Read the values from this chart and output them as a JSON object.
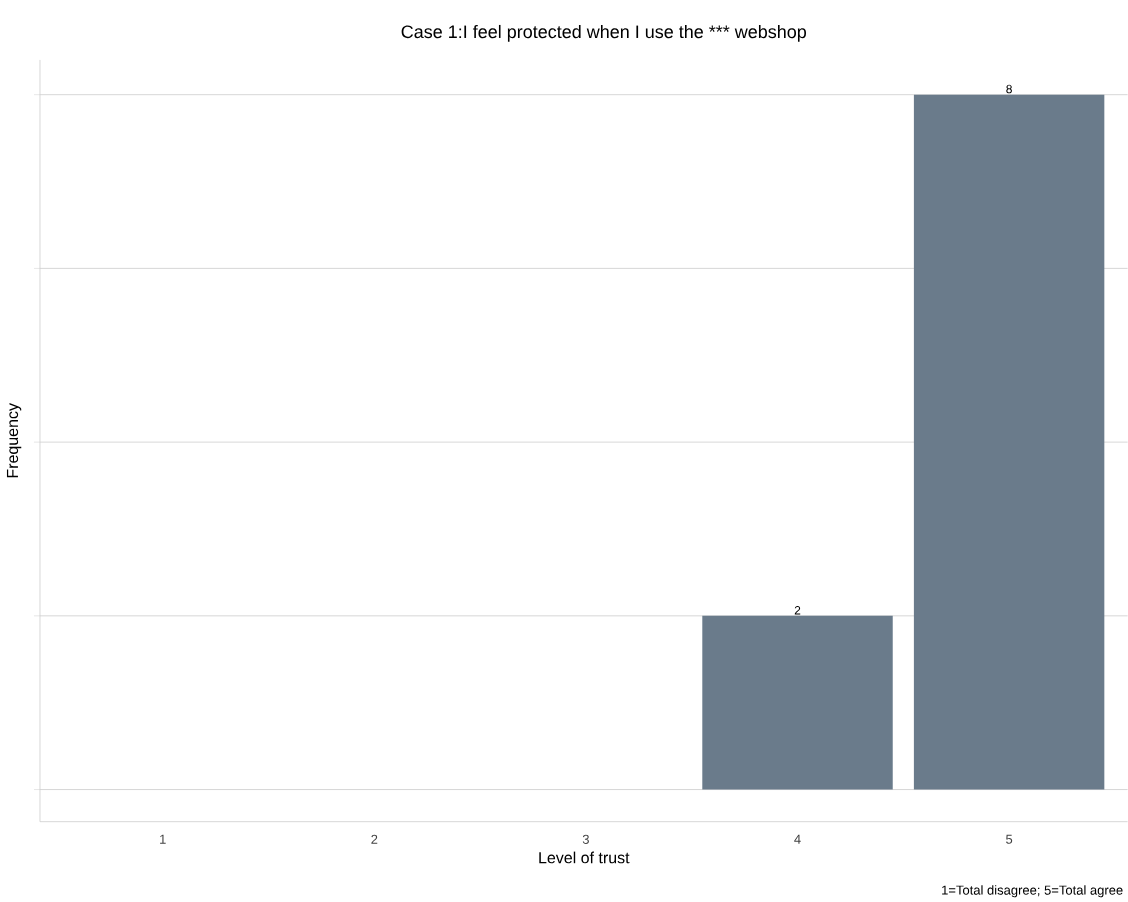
{
  "chart_data": {
    "type": "bar",
    "title": "Case 1:I feel protected when I use the *** webshop",
    "xlabel": "Level of trust",
    "ylabel": "Frequency",
    "categories": [
      "1",
      "2",
      "3",
      "4",
      "5"
    ],
    "values": [
      0,
      0,
      0,
      2,
      8
    ],
    "value_labels": [
      null,
      null,
      null,
      "2",
      "8"
    ],
    "color": "#6a7b8b",
    "ylim": [
      -0.37,
      8.4
    ],
    "yticks": [
      {
        "value": 0,
        "label": null
      },
      {
        "value": 2,
        "label": null
      },
      {
        "value": 4,
        "label": null
      },
      {
        "value": 6,
        "label": null
      },
      {
        "value": 8,
        "label": null
      }
    ],
    "tick_labels": "x",
    "grid": "y",
    "annotations": [
      "1=Total disagree; 5=Total agree"
    ]
  }
}
